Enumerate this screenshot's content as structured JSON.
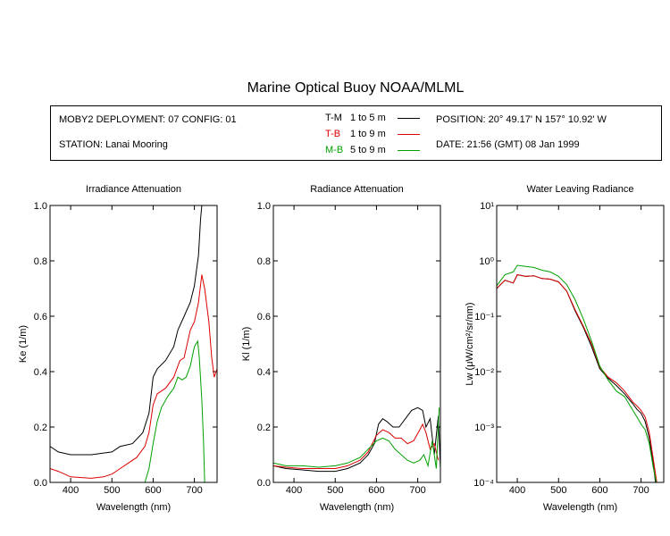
{
  "title": "Marine Optical Buoy NOAA/MLML",
  "info": {
    "deployment": "MOBY2 DEPLOYMENT: 07 CONFIG: 01",
    "station": "STATION: Lanai Mooring",
    "position": "POSITION: 20° 49.17' N   157° 10.92' W",
    "date": "DATE: 21:56 (GMT) 08 Jan 1999"
  },
  "legend": [
    {
      "code": "T-M",
      "range": "1 to 5  m",
      "color": "#000000"
    },
    {
      "code": "T-B",
      "range": "1 to 9  m",
      "color": "#dd0000"
    },
    {
      "code": "M-B",
      "range": "5 to 9  m",
      "color": "#00a000"
    }
  ],
  "chart_data": [
    {
      "type": "line",
      "title": "Irradiance Attenuation",
      "xlabel": "Wavelength (nm)",
      "ylabel": "Ke  (1/m)",
      "xlim": [
        350,
        755
      ],
      "ylim": [
        0,
        1.0
      ],
      "xticks": [
        400,
        500,
        600,
        700
      ],
      "yticks": [
        0.0,
        0.2,
        0.4,
        0.6,
        0.8,
        1.0
      ],
      "ytick_labels": [
        "0.0",
        "0.2",
        "0.4",
        "0.6",
        "0.8",
        "1.0"
      ],
      "series": [
        {
          "name": "T-M",
          "color": "#000000",
          "points": [
            [
              350,
              0.13
            ],
            [
              370,
              0.11
            ],
            [
              400,
              0.1
            ],
            [
              450,
              0.1
            ],
            [
              500,
              0.11
            ],
            [
              520,
              0.13
            ],
            [
              550,
              0.14
            ],
            [
              575,
              0.18
            ],
            [
              590,
              0.25
            ],
            [
              600,
              0.38
            ],
            [
              610,
              0.41
            ],
            [
              630,
              0.44
            ],
            [
              650,
              0.49
            ],
            [
              660,
              0.55
            ],
            [
              675,
              0.6
            ],
            [
              690,
              0.65
            ],
            [
              700,
              0.71
            ],
            [
              710,
              0.82
            ],
            [
              715,
              0.95
            ],
            [
              718,
              1.0
            ]
          ]
        },
        {
          "name": "T-B",
          "color": "#dd0000",
          "points": [
            [
              350,
              0.05
            ],
            [
              370,
              0.04
            ],
            [
              400,
              0.02
            ],
            [
              450,
              0.015
            ],
            [
              480,
              0.02
            ],
            [
              500,
              0.03
            ],
            [
              520,
              0.05
            ],
            [
              540,
              0.07
            ],
            [
              560,
              0.09
            ],
            [
              580,
              0.13
            ],
            [
              590,
              0.18
            ],
            [
              600,
              0.28
            ],
            [
              610,
              0.32
            ],
            [
              630,
              0.34
            ],
            [
              650,
              0.38
            ],
            [
              665,
              0.44
            ],
            [
              675,
              0.45
            ],
            [
              690,
              0.55
            ],
            [
              700,
              0.58
            ],
            [
              710,
              0.65
            ],
            [
              718,
              0.75
            ],
            [
              725,
              0.7
            ],
            [
              735,
              0.58
            ],
            [
              742,
              0.45
            ],
            [
              748,
              0.38
            ],
            [
              755,
              0.41
            ]
          ]
        },
        {
          "name": "M-B",
          "color": "#00a000",
          "points": [
            [
              580,
              0.0
            ],
            [
              590,
              0.05
            ],
            [
              600,
              0.14
            ],
            [
              610,
              0.22
            ],
            [
              620,
              0.27
            ],
            [
              635,
              0.31
            ],
            [
              650,
              0.34
            ],
            [
              660,
              0.38
            ],
            [
              670,
              0.37
            ],
            [
              680,
              0.38
            ],
            [
              690,
              0.42
            ],
            [
              700,
              0.49
            ],
            [
              708,
              0.51
            ],
            [
              712,
              0.45
            ],
            [
              718,
              0.3
            ],
            [
              722,
              0.15
            ],
            [
              725,
              0.0
            ]
          ]
        }
      ]
    },
    {
      "type": "line",
      "title": "Radiance Attenuation",
      "xlabel": "Wavelength (nm)",
      "ylabel": "Kl  (1/m)",
      "xlim": [
        350,
        755
      ],
      "ylim": [
        0,
        1.0
      ],
      "xticks": [
        400,
        500,
        600,
        700
      ],
      "yticks": [
        0.0,
        0.2,
        0.4,
        0.6,
        0.8,
        1.0
      ],
      "ytick_labels": [
        "0.0",
        "0.2",
        "0.4",
        "0.6",
        "0.8",
        "1.0"
      ],
      "series": [
        {
          "name": "T-M",
          "color": "#000000",
          "points": [
            [
              350,
              0.06
            ],
            [
              380,
              0.05
            ],
            [
              420,
              0.045
            ],
            [
              460,
              0.04
            ],
            [
              500,
              0.04
            ],
            [
              530,
              0.05
            ],
            [
              560,
              0.07
            ],
            [
              580,
              0.1
            ],
            [
              595,
              0.14
            ],
            [
              605,
              0.21
            ],
            [
              615,
              0.23
            ],
            [
              625,
              0.22
            ],
            [
              640,
              0.2
            ],
            [
              655,
              0.2
            ],
            [
              670,
              0.23
            ],
            [
              685,
              0.26
            ],
            [
              700,
              0.27
            ],
            [
              712,
              0.26
            ],
            [
              720,
              0.2
            ],
            [
              730,
              0.23
            ],
            [
              740,
              0.1
            ],
            [
              750,
              0.24
            ],
            [
              755,
              0.05
            ]
          ]
        },
        {
          "name": "T-B",
          "color": "#dd0000",
          "points": [
            [
              350,
              0.06
            ],
            [
              380,
              0.055
            ],
            [
              420,
              0.05
            ],
            [
              460,
              0.05
            ],
            [
              500,
              0.05
            ],
            [
              530,
              0.06
            ],
            [
              560,
              0.08
            ],
            [
              580,
              0.11
            ],
            [
              600,
              0.17
            ],
            [
              615,
              0.19
            ],
            [
              630,
              0.18
            ],
            [
              645,
              0.16
            ],
            [
              660,
              0.16
            ],
            [
              675,
              0.14
            ],
            [
              690,
              0.15
            ],
            [
              705,
              0.19
            ],
            [
              712,
              0.21
            ],
            [
              720,
              0.18
            ],
            [
              730,
              0.12
            ],
            [
              740,
              0.14
            ],
            [
              750,
              0.08
            ]
          ]
        },
        {
          "name": "M-B",
          "color": "#00a000",
          "points": [
            [
              350,
              0.07
            ],
            [
              380,
              0.06
            ],
            [
              420,
              0.06
            ],
            [
              460,
              0.055
            ],
            [
              500,
              0.06
            ],
            [
              530,
              0.07
            ],
            [
              560,
              0.09
            ],
            [
              580,
              0.12
            ],
            [
              600,
              0.15
            ],
            [
              615,
              0.16
            ],
            [
              630,
              0.15
            ],
            [
              645,
              0.12
            ],
            [
              660,
              0.1
            ],
            [
              675,
              0.08
            ],
            [
              690,
              0.07
            ],
            [
              705,
              0.08
            ],
            [
              715,
              0.1
            ],
            [
              725,
              0.06
            ],
            [
              735,
              0.15
            ],
            [
              745,
              0.05
            ],
            [
              752,
              0.27
            ]
          ]
        }
      ]
    },
    {
      "type": "line",
      "title": "Water Leaving Radiance",
      "xlabel": "Wavelength (nm)",
      "ylabel": "Lw  (μW/cm²/sr/nm)",
      "xlim": [
        350,
        755
      ],
      "ylim": [
        -4,
        1
      ],
      "yscale": "log",
      "xticks": [
        400,
        500,
        600,
        700
      ],
      "yticks": [
        1,
        0,
        -1,
        -2,
        -3,
        -4
      ],
      "ytick_labels": [
        "10¹",
        "10⁰",
        "10⁻¹",
        "10⁻²",
        "10⁻³",
        "10⁻⁴"
      ],
      "series": [
        {
          "name": "T-M",
          "color": "#000000",
          "points": [
            [
              350,
              -0.5
            ],
            [
              370,
              -0.35
            ],
            [
              390,
              -0.4
            ],
            [
              400,
              -0.25
            ],
            [
              420,
              -0.28
            ],
            [
              440,
              -0.27
            ],
            [
              460,
              -0.32
            ],
            [
              480,
              -0.33
            ],
            [
              500,
              -0.38
            ],
            [
              520,
              -0.55
            ],
            [
              540,
              -0.9
            ],
            [
              560,
              -1.2
            ],
            [
              580,
              -1.55
            ],
            [
              600,
              -1.95
            ],
            [
              620,
              -2.12
            ],
            [
              640,
              -2.25
            ],
            [
              660,
              -2.4
            ],
            [
              680,
              -2.58
            ],
            [
              690,
              -2.68
            ],
            [
              700,
              -2.75
            ],
            [
              710,
              -2.9
            ],
            [
              720,
              -3.2
            ],
            [
              730,
              -3.7
            ],
            [
              735,
              -4
            ]
          ]
        },
        {
          "name": "T-B",
          "color": "#dd0000",
          "points": [
            [
              350,
              -0.5
            ],
            [
              370,
              -0.35
            ],
            [
              390,
              -0.4
            ],
            [
              400,
              -0.25
            ],
            [
              420,
              -0.28
            ],
            [
              440,
              -0.27
            ],
            [
              460,
              -0.32
            ],
            [
              480,
              -0.33
            ],
            [
              500,
              -0.38
            ],
            [
              520,
              -0.55
            ],
            [
              540,
              -0.88
            ],
            [
              560,
              -1.18
            ],
            [
              580,
              -1.5
            ],
            [
              600,
              -1.92
            ],
            [
              620,
              -2.1
            ],
            [
              640,
              -2.2
            ],
            [
              660,
              -2.35
            ],
            [
              680,
              -2.55
            ],
            [
              690,
              -2.62
            ],
            [
              700,
              -2.7
            ],
            [
              710,
              -2.82
            ],
            [
              720,
              -3.1
            ],
            [
              730,
              -3.6
            ],
            [
              738,
              -4
            ]
          ]
        },
        {
          "name": "M-B",
          "color": "#00a000",
          "points": [
            [
              350,
              -0.45
            ],
            [
              370,
              -0.25
            ],
            [
              390,
              -0.2
            ],
            [
              400,
              -0.08
            ],
            [
              420,
              -0.1
            ],
            [
              440,
              -0.12
            ],
            [
              460,
              -0.17
            ],
            [
              480,
              -0.2
            ],
            [
              500,
              -0.28
            ],
            [
              520,
              -0.43
            ],
            [
              540,
              -0.7
            ],
            [
              560,
              -1.05
            ],
            [
              580,
              -1.45
            ],
            [
              600,
              -1.9
            ],
            [
              620,
              -2.15
            ],
            [
              640,
              -2.35
            ],
            [
              660,
              -2.45
            ],
            [
              680,
              -2.7
            ],
            [
              690,
              -2.82
            ],
            [
              700,
              -2.95
            ],
            [
              710,
              -3.05
            ],
            [
              720,
              -3.3
            ],
            [
              730,
              -3.75
            ],
            [
              737,
              -4
            ]
          ]
        }
      ]
    }
  ]
}
